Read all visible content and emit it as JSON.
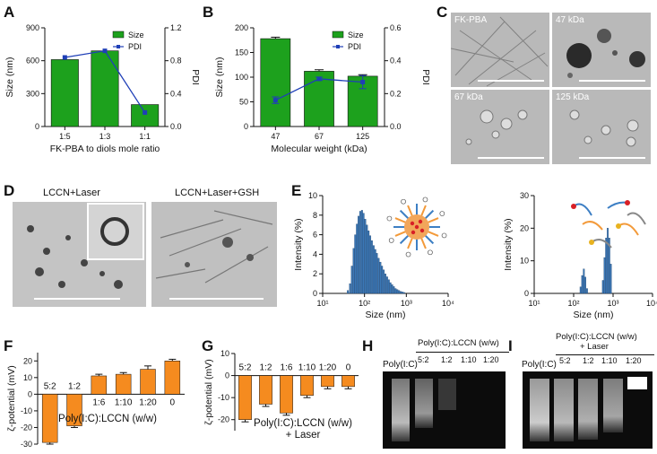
{
  "panels": {
    "A": "A",
    "B": "B",
    "C": "C",
    "D": "D",
    "E": "E",
    "F": "F",
    "G": "G",
    "H": "H",
    "I": "I"
  },
  "chart_data": [
    {
      "id": "A",
      "type": "bar",
      "categories": [
        "1:5",
        "1:3",
        "1:1"
      ],
      "series": [
        {
          "name": "Size",
          "kind": "bar",
          "axis": "left",
          "values": [
            610,
            690,
            200
          ]
        },
        {
          "name": "PDI",
          "kind": "line",
          "axis": "right",
          "values": [
            0.84,
            0.92,
            0.17
          ]
        }
      ],
      "xlabel": "FK-PBA to diols mole ratio",
      "ylabel": "Size (nm)",
      "y2label": "PDI",
      "ylim": [
        0,
        900
      ],
      "yticks": [
        0,
        300,
        600,
        900
      ],
      "y2lim": [
        0,
        1.2
      ],
      "y2ticks": [
        "0.0",
        "0.4",
        "0.8",
        "1.2"
      ],
      "legend": "top-right",
      "colors": {
        "bar": "#1da11d",
        "line": "#1f3fb7"
      }
    },
    {
      "id": "B",
      "type": "bar",
      "categories": [
        "47",
        "67",
        "125"
      ],
      "series": [
        {
          "name": "Size",
          "kind": "bar",
          "axis": "left",
          "values": [
            178,
            112,
            102
          ],
          "errors": [
            3,
            3,
            3
          ]
        },
        {
          "name": "PDI",
          "kind": "line",
          "axis": "right",
          "values": [
            0.16,
            0.29,
            0.27
          ],
          "errors": [
            0.02,
            0.01,
            0.04
          ]
        }
      ],
      "xlabel": "Molecular weight (kDa)",
      "ylabel": "Size (nm)",
      "y2label": "PDI",
      "ylim": [
        0,
        200
      ],
      "yticks": [
        0,
        50,
        100,
        150,
        200
      ],
      "y2lim": [
        0,
        0.6
      ],
      "y2ticks": [
        "0.0",
        "0.2",
        "0.4",
        "0.6"
      ],
      "legend": "top-right",
      "colors": {
        "bar": "#1da11d",
        "line": "#1f3fb7"
      }
    },
    {
      "id": "E1",
      "type": "bar",
      "xscale": "log",
      "xticks": [
        "10¹",
        "10²",
        "10³",
        "10⁴"
      ],
      "xlabel": "Size (nm)",
      "ylabel": "Intensity (%)",
      "ylim": [
        0,
        10
      ],
      "yticks": [
        0,
        2,
        4,
        6,
        8,
        10
      ],
      "bins": [
        {
          "x": 40,
          "y": 0.3
        },
        {
          "x": 45,
          "y": 1.0
        },
        {
          "x": 50,
          "y": 2.8
        },
        {
          "x": 55,
          "y": 4.6
        },
        {
          "x": 60,
          "y": 6.0
        },
        {
          "x": 66,
          "y": 7.1
        },
        {
          "x": 72,
          "y": 7.9
        },
        {
          "x": 79,
          "y": 8.4
        },
        {
          "x": 87,
          "y": 8.5
        },
        {
          "x": 95,
          "y": 8.2
        },
        {
          "x": 104,
          "y": 7.6
        },
        {
          "x": 114,
          "y": 7.0
        },
        {
          "x": 125,
          "y": 6.4
        },
        {
          "x": 137,
          "y": 5.9
        },
        {
          "x": 150,
          "y": 5.4
        },
        {
          "x": 165,
          "y": 4.9
        },
        {
          "x": 181,
          "y": 4.5
        },
        {
          "x": 198,
          "y": 4.1
        },
        {
          "x": 218,
          "y": 3.6
        },
        {
          "x": 239,
          "y": 3.2
        },
        {
          "x": 262,
          "y": 2.8
        },
        {
          "x": 288,
          "y": 2.4
        },
        {
          "x": 316,
          "y": 2.0
        },
        {
          "x": 347,
          "y": 1.7
        },
        {
          "x": 381,
          "y": 1.4
        },
        {
          "x": 418,
          "y": 1.1
        },
        {
          "x": 459,
          "y": 0.9
        },
        {
          "x": 504,
          "y": 0.7
        },
        {
          "x": 553,
          "y": 0.5
        },
        {
          "x": 607,
          "y": 0.4
        },
        {
          "x": 666,
          "y": 0.3
        },
        {
          "x": 731,
          "y": 0.2
        },
        {
          "x": 802,
          "y": 0.15
        },
        {
          "x": 880,
          "y": 0.1
        }
      ],
      "colors": {
        "bar": "#3a78b8"
      }
    },
    {
      "id": "E2",
      "type": "bar",
      "xscale": "log",
      "xticks": [
        "10¹",
        "10²",
        "10³",
        "10⁴"
      ],
      "xlabel": "Size (nm)",
      "ylabel": "Intensity (%)",
      "ylim": [
        0,
        30
      ],
      "yticks": [
        0,
        10,
        20,
        30
      ],
      "bins": [
        {
          "x": 150,
          "y": 2.0
        },
        {
          "x": 165,
          "y": 5.5
        },
        {
          "x": 181,
          "y": 7.5
        },
        {
          "x": 198,
          "y": 5.0
        },
        {
          "x": 218,
          "y": 1.5
        },
        {
          "x": 553,
          "y": 4.0
        },
        {
          "x": 607,
          "y": 11.0
        },
        {
          "x": 666,
          "y": 17.0
        },
        {
          "x": 731,
          "y": 20.0
        },
        {
          "x": 802,
          "y": 17.0
        },
        {
          "x": 880,
          "y": 9.0
        }
      ],
      "colors": {
        "bar": "#3a78b8"
      }
    },
    {
      "id": "F",
      "type": "bar",
      "categories": [
        "5:2",
        "1:2",
        "1:6",
        "1:10",
        "1:20",
        "0"
      ],
      "values": [
        -29,
        -19,
        11,
        12,
        15,
        20
      ],
      "errors": [
        1,
        1,
        1,
        1,
        2,
        1
      ],
      "xlabel": "Poly(I:C):LCCN (w/w)",
      "ylabel": "ζ-potential (mV)",
      "ylim": [
        -30,
        25
      ],
      "yticks": [
        -30,
        -20,
        -10,
        0,
        10,
        20
      ],
      "colors": {
        "bar": "#f58b1f"
      }
    },
    {
      "id": "G",
      "type": "bar",
      "categories": [
        "5:2",
        "1:2",
        "1:6",
        "1:10",
        "1:20",
        "0"
      ],
      "values": [
        -20,
        -13,
        -17,
        -9,
        -5,
        -5
      ],
      "errors": [
        1,
        1,
        1,
        1,
        1,
        1
      ],
      "xlabel": "Poly(I:C):LCCN (w/w)",
      "xlabel2": "+ Laser",
      "ylabel": "ζ-potential (mV)",
      "ylim": [
        -25,
        10
      ],
      "yticks": [
        -20,
        -10,
        0,
        10
      ],
      "colors": {
        "bar": "#f58b1f"
      }
    }
  ],
  "images": {
    "C": {
      "labels": [
        "FK-PBA",
        "47 kDa",
        "67 kDa",
        "125 kDa"
      ]
    },
    "D": {
      "labels": [
        "LCCN+Laser",
        "LCCN+Laser+GSH"
      ]
    },
    "H": {
      "label1": "Poly(I:C)",
      "label2": "Poly(I:C):LCCN (w/w)",
      "lanes": [
        "5:2",
        "1:2",
        "1:10",
        "1:20"
      ]
    },
    "I": {
      "label1": "Poly(I:C)",
      "label2": "Poly(I:C):LCCN (w/w)",
      "label3": "+ Laser",
      "lanes": [
        "5:2",
        "1:2",
        "1:10",
        "1:20"
      ]
    }
  }
}
